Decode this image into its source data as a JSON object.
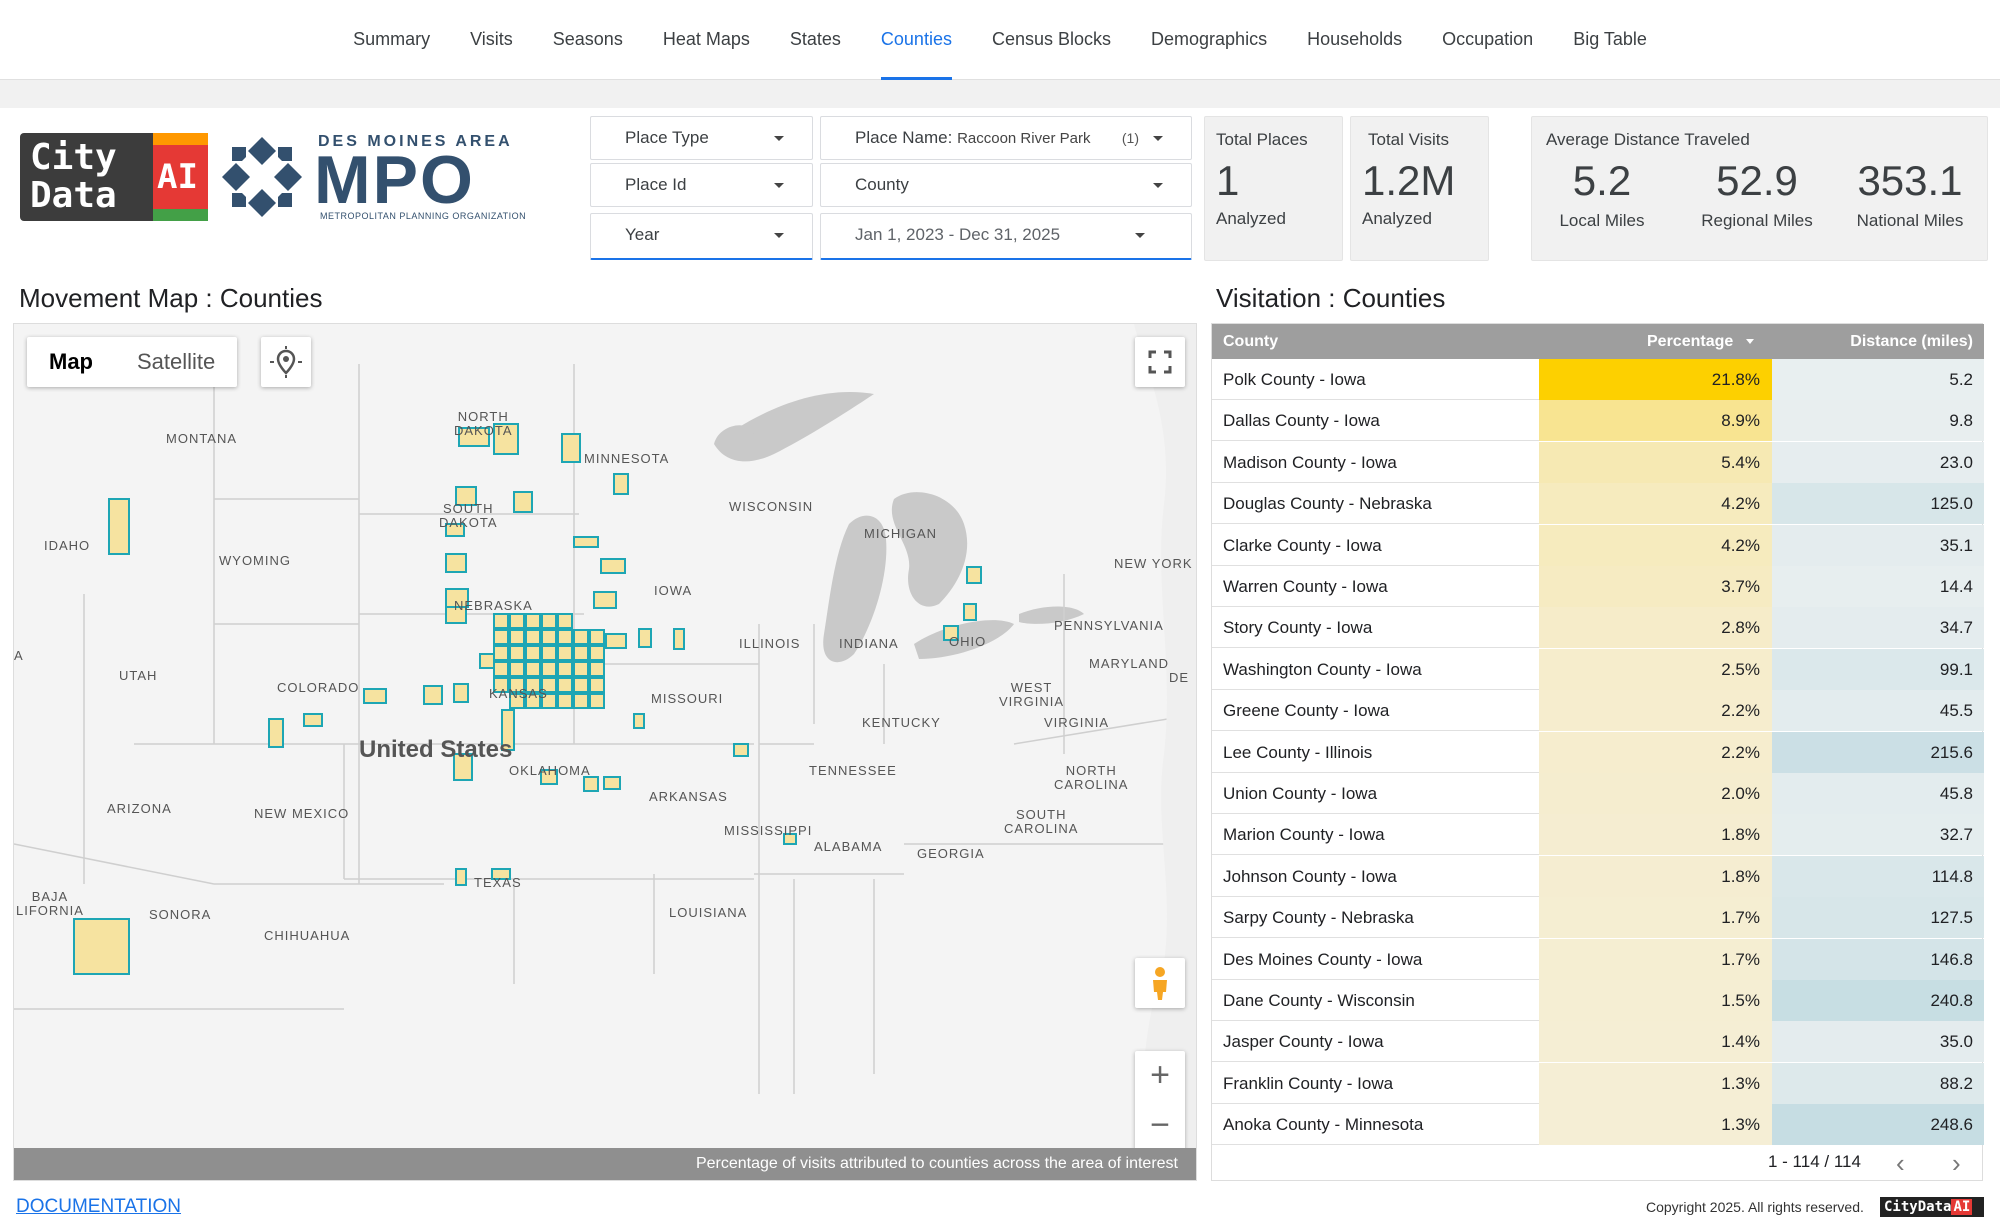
{
  "nav": {
    "tabs": [
      {
        "label": "Summary",
        "active": false
      },
      {
        "label": "Visits",
        "active": false
      },
      {
        "label": "Seasons",
        "active": false
      },
      {
        "label": "Heat Maps",
        "active": false
      },
      {
        "label": "States",
        "active": false
      },
      {
        "label": "Counties",
        "active": true
      },
      {
        "label": "Census Blocks",
        "active": false
      },
      {
        "label": "Demographics",
        "active": false
      },
      {
        "label": "Households",
        "active": false
      },
      {
        "label": "Occupation",
        "active": false
      },
      {
        "label": "Big Table",
        "active": false
      }
    ]
  },
  "logo": {
    "citydata_line1": "City",
    "citydata_line2": "Data",
    "citydata_ai": "AI",
    "mpo_top": "DES MOINES AREA",
    "mpo_big": "MPO",
    "mpo_sub": "METROPOLITAN PLANNING ORGANIZATION"
  },
  "filters": {
    "place_type": "Place Type",
    "place_name_label": "Place Name:",
    "place_name_value": "Raccoon River Park",
    "place_name_count": "(1)",
    "place_id": "Place Id",
    "county": "County",
    "year": "Year",
    "date_range": "Jan 1, 2023 - Dec 31, 2025"
  },
  "scorecards": {
    "total_places": {
      "label": "Total Places",
      "value": "1",
      "sub": "Analyzed"
    },
    "total_visits": {
      "label": "Total Visits",
      "value": "1.2M",
      "sub": "Analyzed"
    },
    "avg_distance": {
      "label": "Average Distance Traveled",
      "local": {
        "value": "5.2",
        "sub": "Local Miles"
      },
      "regional": {
        "value": "52.9",
        "sub": "Regional Miles"
      },
      "national": {
        "value": "353.1",
        "sub": "National Miles"
      }
    }
  },
  "map": {
    "title": "Movement Map : Counties",
    "map_button": "Map",
    "satellite_button": "Satellite",
    "country_label": "United States",
    "caption": "Percentage of visits attributed to counties across the area of interest",
    "state_labels": [
      {
        "text": "NORTH\nDAKOTA"
      },
      {
        "text": "MONTANA"
      },
      {
        "text": "MINNESOTA"
      },
      {
        "text": "SOUTH\nDAKOTA"
      },
      {
        "text": "WISCONSIN"
      },
      {
        "text": "MICHIGAN"
      },
      {
        "text": "IDAHO"
      },
      {
        "text": "WYOMING"
      },
      {
        "text": "NEW YORK"
      },
      {
        "text": "IOWA"
      },
      {
        "text": "NEBRASKA"
      },
      {
        "text": "PENNSYLVANIA"
      },
      {
        "text": "ILLINOIS"
      },
      {
        "text": "INDIANA"
      },
      {
        "text": "OHIO"
      },
      {
        "text": "UTAH"
      },
      {
        "text": "COLORADO"
      },
      {
        "text": "KANSAS"
      },
      {
        "text": "MISSOURI"
      },
      {
        "text": "MARYLAND"
      },
      {
        "text": "DE"
      },
      {
        "text": "WEST\nVIRGINIA"
      },
      {
        "text": "KENTUCKY"
      },
      {
        "text": "VIRGINIA"
      },
      {
        "text": "OKLAHOMA"
      },
      {
        "text": "TENNESSEE"
      },
      {
        "text": "NORTH\nCAROLINA"
      },
      {
        "text": "ARIZONA"
      },
      {
        "text": "NEW MEXICO"
      },
      {
        "text": "ARKANSAS"
      },
      {
        "text": "SOUTH\nCAROLINA"
      },
      {
        "text": "MISSISSIPPI"
      },
      {
        "text": "ALABAMA"
      },
      {
        "text": "GEORGIA"
      },
      {
        "text": "TEXAS"
      },
      {
        "text": "LOUISIANA"
      },
      {
        "text": "BAJA\nLIFORNIA"
      },
      {
        "text": "SONORA"
      },
      {
        "text": "CHIHUAHUA"
      },
      {
        "text": "A"
      }
    ]
  },
  "table": {
    "title": "Visitation : Counties",
    "headers": {
      "county": "County",
      "percentage": "Percentage",
      "distance": "Distance (miles)"
    },
    "rows": [
      {
        "county": "Polk County - Iowa",
        "percentage": "21.8%",
        "distance": "5.2",
        "pct_value": 21.8,
        "dist_value": 5.2
      },
      {
        "county": "Dallas County - Iowa",
        "percentage": "8.9%",
        "distance": "9.8",
        "pct_value": 8.9,
        "dist_value": 9.8
      },
      {
        "county": "Madison County - Iowa",
        "percentage": "5.4%",
        "distance": "23.0",
        "pct_value": 5.4,
        "dist_value": 23.0
      },
      {
        "county": "Douglas County - Nebraska",
        "percentage": "4.2%",
        "distance": "125.0",
        "pct_value": 4.2,
        "dist_value": 125.0
      },
      {
        "county": "Clarke County - Iowa",
        "percentage": "4.2%",
        "distance": "35.1",
        "pct_value": 4.2,
        "dist_value": 35.1
      },
      {
        "county": "Warren County - Iowa",
        "percentage": "3.7%",
        "distance": "14.4",
        "pct_value": 3.7,
        "dist_value": 14.4
      },
      {
        "county": "Story County - Iowa",
        "percentage": "2.8%",
        "distance": "34.7",
        "pct_value": 2.8,
        "dist_value": 34.7
      },
      {
        "county": "Washington County - Iowa",
        "percentage": "2.5%",
        "distance": "99.1",
        "pct_value": 2.5,
        "dist_value": 99.1
      },
      {
        "county": "Greene County - Iowa",
        "percentage": "2.2%",
        "distance": "45.5",
        "pct_value": 2.2,
        "dist_value": 45.5
      },
      {
        "county": "Lee County - Illinois",
        "percentage": "2.2%",
        "distance": "215.6",
        "pct_value": 2.2,
        "dist_value": 215.6
      },
      {
        "county": "Union County - Iowa",
        "percentage": "2.0%",
        "distance": "45.8",
        "pct_value": 2.0,
        "dist_value": 45.8
      },
      {
        "county": "Marion County - Iowa",
        "percentage": "1.8%",
        "distance": "32.7",
        "pct_value": 1.8,
        "dist_value": 32.7
      },
      {
        "county": "Johnson County - Iowa",
        "percentage": "1.8%",
        "distance": "114.8",
        "pct_value": 1.8,
        "dist_value": 114.8
      },
      {
        "county": "Sarpy County - Nebraska",
        "percentage": "1.7%",
        "distance": "127.5",
        "pct_value": 1.7,
        "dist_value": 127.5
      },
      {
        "county": "Des Moines County - Iowa",
        "percentage": "1.7%",
        "distance": "146.8",
        "pct_value": 1.7,
        "dist_value": 146.8
      },
      {
        "county": "Dane County - Wisconsin",
        "percentage": "1.5%",
        "distance": "240.8",
        "pct_value": 1.5,
        "dist_value": 240.8
      },
      {
        "county": "Jasper County - Iowa",
        "percentage": "1.4%",
        "distance": "35.0",
        "pct_value": 1.4,
        "dist_value": 35.0
      },
      {
        "county": "Franklin County - Iowa",
        "percentage": "1.3%",
        "distance": "88.2",
        "pct_value": 1.3,
        "dist_value": 88.2
      },
      {
        "county": "Anoka County - Minnesota",
        "percentage": "1.3%",
        "distance": "248.6",
        "pct_value": 1.3,
        "dist_value": 248.6
      }
    ],
    "pager": "1 - 114 / 114"
  },
  "footer": {
    "documentation": "DOCUMENTATION",
    "copyright": "Copyright 2025. All rights reserved.",
    "mini_logo_text": "CityData",
    "mini_logo_ai": "AI"
  },
  "colors": {
    "accent": "#1a73e8",
    "pct_max": "#fdd000",
    "pct_min": "#f5efdc",
    "dist_min": "#e9eff0",
    "dist_max": "#c6dde3",
    "county_fill": "#f6e3a0",
    "county_stroke": "#1ea6b4"
  }
}
